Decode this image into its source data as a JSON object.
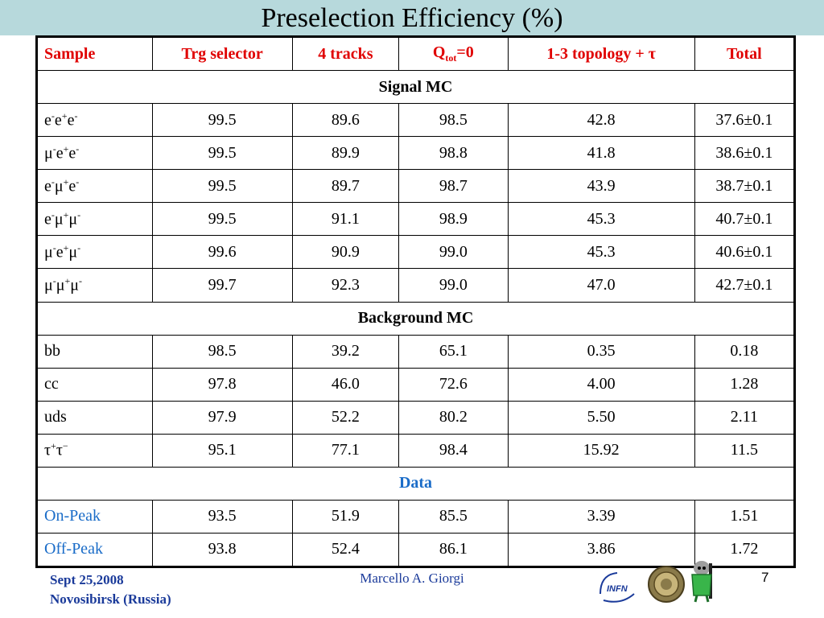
{
  "slide": {
    "title": "Preselection  Efficiency (%)",
    "footer": {
      "date": "Sept 25,2008",
      "location": "Novosibirsk (Russia)",
      "author": "Marcello A. Giorgi",
      "page": "7"
    },
    "logos": {
      "infn_text": "INFN"
    }
  },
  "table": {
    "headers": [
      "Sample",
      "Trg selector",
      "4 tracks",
      "Q",
      "1-3 topology + τ",
      "Total"
    ],
    "qtot": {
      "base": "Q",
      "sub": "tot",
      "suffix": "=0"
    },
    "sections": {
      "signal": "Signal MC",
      "background": "Background MC",
      "data": "Data"
    },
    "signal_rows": [
      {
        "values": [
          "99.5",
          "89.6",
          "98.5",
          "42.8",
          "37.6±0.1"
        ]
      },
      {
        "values": [
          "99.5",
          "89.9",
          "98.8",
          "41.8",
          "38.6±0.1"
        ]
      },
      {
        "values": [
          "99.5",
          "89.7",
          "98.7",
          "43.9",
          "38.7±0.1"
        ]
      },
      {
        "values": [
          "99.5",
          "91.1",
          "98.9",
          "45.3",
          "40.7±0.1"
        ]
      },
      {
        "values": [
          "99.6",
          "90.9",
          "99.0",
          "45.3",
          "40.6±0.1"
        ]
      },
      {
        "values": [
          "99.7",
          "92.3",
          "99.0",
          "47.0",
          "42.7±0.1"
        ]
      }
    ],
    "signal_labels": [
      [
        "e",
        "-",
        "e",
        "+",
        "e",
        "-"
      ],
      [
        "μ",
        "-",
        "e",
        "+",
        "e",
        "-"
      ],
      [
        "e",
        "-",
        "μ",
        "+",
        "e",
        "-"
      ],
      [
        "e",
        "-",
        "μ",
        "+",
        "μ",
        "-"
      ],
      [
        "μ",
        "-",
        "e",
        "+",
        "μ",
        "-"
      ],
      [
        "μ",
        "-",
        "μ",
        "+",
        "μ",
        "-"
      ]
    ],
    "background_rows": [
      {
        "sample": "bb",
        "values": [
          "98.5",
          "39.2",
          "65.1",
          "0.35",
          "0.18"
        ]
      },
      {
        "sample": "cc",
        "values": [
          "97.8",
          "46.0",
          "72.6",
          "4.00",
          "1.28"
        ]
      },
      {
        "sample": "uds",
        "values": [
          "97.9",
          "52.2",
          "80.2",
          "5.50",
          "2.11"
        ]
      },
      {
        "sample": "τ",
        "values": [
          "95.1",
          "77.1",
          "98.4",
          "15.92",
          "11.5"
        ]
      }
    ],
    "tau_label": {
      "a": "τ",
      "a_sup": "+",
      "b": "τ",
      "b_sup": "−"
    },
    "data_rows": [
      {
        "sample": "On-Peak",
        "values": [
          "93.5",
          "51.9",
          "85.5",
          "3.39",
          "1.51"
        ]
      },
      {
        "sample": "Off-Peak",
        "values": [
          "93.8",
          "52.4",
          "86.1",
          "3.86",
          "1.72"
        ]
      }
    ]
  }
}
